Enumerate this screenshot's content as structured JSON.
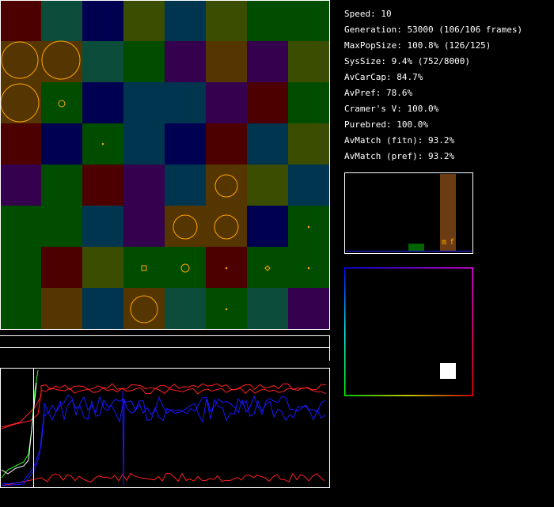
{
  "stats": {
    "speed": "Speed: 10",
    "generation": "Generation: 53000 (106/106 frames)",
    "maxpop": "MaxPopSize: 100.8% (126/125)",
    "sys": "SysSize: 9.4% (752/8000)",
    "avcarcap": "AvCarCap: 84.7%",
    "avpref": "AvPref: 78.6%",
    "cramer": "Cramer's V: 100.0%",
    "purebred": "Purebred: 100.0%",
    "match_fitn": "AvMatch (fitn): 93.2%",
    "match_pref": "AvMatch (pref): 93.2%"
  },
  "histogram": {
    "m_label": "m",
    "f_label": "f",
    "colors": {
      "male": "#6b3c14",
      "female": "#006400",
      "frame": "#ffffff"
    }
  },
  "colors": {
    "grid_cells": [
      [
        "#4d0000",
        "#0b4d3a",
        "#000050",
        "#3b4d00",
        "#003550",
        "#3b4d00",
        "#004d00",
        "#004d00"
      ],
      [
        "#553500",
        "#553500",
        "#0b4d3a",
        "#004d00",
        "#35004d",
        "#553500",
        "#35004d",
        "#3b4d00"
      ],
      [
        "#553500",
        "#004d00",
        "#000050",
        "#003550",
        "#003550",
        "#35004d",
        "#4d0000",
        "#004d00"
      ],
      [
        "#4d0000",
        "#000050",
        "#004d00",
        "#003550",
        "#000050",
        "#4d0000",
        "#003550",
        "#3b4d00"
      ],
      [
        "#35004d",
        "#004d00",
        "#4d0000",
        "#35004d",
        "#003550",
        "#553500",
        "#3b4d00",
        "#003550"
      ],
      [
        "#004d00",
        "#004d00",
        "#003550",
        "#35004d",
        "#553500",
        "#553500",
        "#000050",
        "#004d00"
      ],
      [
        "#004d00",
        "#4d0000",
        "#3b4d00",
        "#004d00",
        "#004d00",
        "#4d0000",
        "#004d00",
        "#004d00"
      ],
      [
        "#004d00",
        "#553500",
        "#003550",
        "#553500",
        "#0b4d3a",
        "#004d00",
        "#0b4d3a",
        "#35004d"
      ]
    ],
    "organism_stroke": "#ffa500",
    "plot_red": "#ff2020",
    "plot_blue": "#1818ff",
    "plot_green": "#20ff20",
    "plot_white": "#ffffff",
    "text": "#ffffff"
  }
}
